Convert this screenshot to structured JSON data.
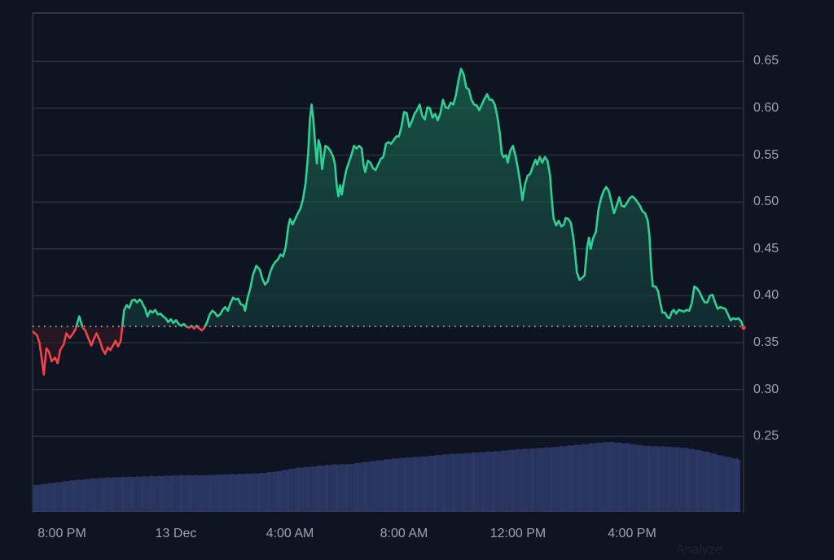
{
  "chart_data": {
    "type": "area",
    "title": "",
    "xlabel": "",
    "ylabel": "",
    "ylim": [
      0.2,
      0.7
    ],
    "grid": true,
    "legend": null,
    "baseline": 0.367,
    "x_ticks": [
      "8:00 PM",
      "13 Dec",
      "4:00 AM",
      "8:00 AM",
      "12:00 PM",
      "4:00 PM"
    ],
    "y_ticks": [
      "0.65",
      "0.60",
      "0.55",
      "0.50",
      "0.45",
      "0.40",
      "0.35",
      "0.30",
      "0.25"
    ],
    "colors": {
      "up": "#2ed192",
      "down": "#f0434a",
      "volume": "#2a3560",
      "grid": "#2a303c",
      "background": "#0e1421"
    },
    "series": [
      {
        "name": "price",
        "points": [
          [
            0,
            0.362
          ],
          [
            5,
            0.358
          ],
          [
            8,
            0.35
          ],
          [
            11,
            0.33
          ],
          [
            13,
            0.316
          ],
          [
            16,
            0.344
          ],
          [
            19,
            0.34
          ],
          [
            22,
            0.33
          ],
          [
            26,
            0.334
          ],
          [
            29,
            0.328
          ],
          [
            32,
            0.342
          ],
          [
            36,
            0.348
          ],
          [
            39,
            0.36
          ],
          [
            43,
            0.355
          ],
          [
            47,
            0.36
          ],
          [
            50,
            0.365
          ],
          [
            54,
            0.378
          ],
          [
            58,
            0.366
          ],
          [
            61,
            0.363
          ],
          [
            64,
            0.356
          ],
          [
            68,
            0.347
          ],
          [
            71,
            0.354
          ],
          [
            74,
            0.36
          ],
          [
            78,
            0.352
          ],
          [
            81,
            0.343
          ],
          [
            84,
            0.338
          ],
          [
            87,
            0.345
          ],
          [
            90,
            0.342
          ],
          [
            93,
            0.347
          ],
          [
            96,
            0.352
          ],
          [
            99,
            0.346
          ],
          [
            102,
            0.352
          ],
          [
            104,
            0.368
          ],
          [
            106,
            0.385
          ],
          [
            109,
            0.39
          ],
          [
            112,
            0.387
          ],
          [
            115,
            0.395
          ],
          [
            118,
            0.396
          ],
          [
            121,
            0.393
          ],
          [
            124,
            0.396
          ],
          [
            126,
            0.394
          ],
          [
            128,
            0.39
          ],
          [
            130,
            0.387
          ],
          [
            133,
            0.378
          ],
          [
            136,
            0.384
          ],
          [
            139,
            0.382
          ],
          [
            142,
            0.385
          ],
          [
            145,
            0.38
          ],
          [
            148,
            0.381
          ],
          [
            151,
            0.378
          ],
          [
            154,
            0.376
          ],
          [
            157,
            0.372
          ],
          [
            160,
            0.375
          ],
          [
            163,
            0.371
          ],
          [
            166,
            0.374
          ],
          [
            169,
            0.37
          ],
          [
            172,
            0.368
          ],
          [
            175,
            0.37
          ],
          [
            178,
            0.367
          ],
          [
            181,
            0.366
          ],
          [
            184,
            0.368
          ],
          [
            187,
            0.365
          ],
          [
            190,
            0.368
          ],
          [
            193,
            0.365
          ],
          [
            196,
            0.363
          ],
          [
            199,
            0.366
          ],
          [
            202,
            0.372
          ],
          [
            205,
            0.38
          ],
          [
            208,
            0.384
          ],
          [
            211,
            0.382
          ],
          [
            214,
            0.378
          ],
          [
            217,
            0.38
          ],
          [
            220,
            0.385
          ],
          [
            223,
            0.388
          ],
          [
            226,
            0.384
          ],
          [
            229,
            0.392
          ],
          [
            232,
            0.398
          ],
          [
            235,
            0.396
          ],
          [
            238,
            0.397
          ],
          [
            241,
            0.391
          ],
          [
            244,
            0.39
          ],
          [
            246,
            0.384
          ],
          [
            249,
            0.398
          ],
          [
            252,
            0.408
          ],
          [
            255,
            0.422
          ],
          [
            259,
            0.432
          ],
          [
            263,
            0.428
          ],
          [
            266,
            0.418
          ],
          [
            269,
            0.412
          ],
          [
            272,
            0.415
          ],
          [
            275,
            0.425
          ],
          [
            278,
            0.432
          ],
          [
            281,
            0.436
          ],
          [
            284,
            0.439
          ],
          [
            287,
            0.444
          ],
          [
            290,
            0.442
          ],
          [
            293,
            0.452
          ],
          [
            296,
            0.474
          ],
          [
            298,
            0.482
          ],
          [
            301,
            0.476
          ],
          [
            304,
            0.482
          ],
          [
            307,
            0.488
          ],
          [
            310,
            0.493
          ],
          [
            313,
            0.503
          ],
          [
            316,
            0.52
          ],
          [
            319,
            0.552
          ],
          [
            321,
            0.588
          ],
          [
            323,
            0.604
          ],
          [
            325,
            0.588
          ],
          [
            327,
            0.563
          ],
          [
            329,
            0.541
          ],
          [
            331,
            0.566
          ],
          [
            333,
            0.56
          ],
          [
            335,
            0.535
          ],
          [
            337,
            0.548
          ],
          [
            339,
            0.56
          ],
          [
            342,
            0.558
          ],
          [
            345,
            0.554
          ],
          [
            348,
            0.548
          ],
          [
            350,
            0.54
          ],
          [
            352,
            0.518
          ],
          [
            354,
            0.506
          ],
          [
            356,
            0.518
          ],
          [
            358,
            0.508
          ],
          [
            360,
            0.52
          ],
          [
            363,
            0.534
          ],
          [
            366,
            0.542
          ],
          [
            369,
            0.55
          ],
          [
            372,
            0.56
          ],
          [
            375,
            0.557
          ],
          [
            378,
            0.56
          ],
          [
            381,
            0.557
          ],
          [
            383,
            0.54
          ],
          [
            385,
            0.532
          ],
          [
            388,
            0.544
          ],
          [
            391,
            0.542
          ],
          [
            394,
            0.536
          ],
          [
            397,
            0.534
          ],
          [
            400,
            0.54
          ],
          [
            403,
            0.546
          ],
          [
            406,
            0.548
          ],
          [
            409,
            0.562
          ],
          [
            412,
            0.564
          ],
          [
            415,
            0.562
          ],
          [
            418,
            0.566
          ],
          [
            421,
            0.57
          ],
          [
            424,
            0.57
          ],
          [
            427,
            0.58
          ],
          [
            430,
            0.596
          ],
          [
            433,
            0.595
          ],
          [
            436,
            0.58
          ],
          [
            439,
            0.586
          ],
          [
            442,
            0.594
          ],
          [
            445,
            0.598
          ],
          [
            448,
            0.604
          ],
          [
            451,
            0.592
          ],
          [
            454,
            0.588
          ],
          [
            457,
            0.601
          ],
          [
            460,
            0.6
          ],
          [
            463,
            0.59
          ],
          [
            466,
            0.594
          ],
          [
            469,
            0.587
          ],
          [
            472,
            0.595
          ],
          [
            475,
            0.609
          ],
          [
            478,
            0.601
          ],
          [
            481,
            0.6
          ],
          [
            484,
            0.606
          ],
          [
            487,
            0.604
          ],
          [
            490,
            0.614
          ],
          [
            493,
            0.63
          ],
          [
            496,
            0.642
          ],
          [
            499,
            0.636
          ],
          [
            502,
            0.622
          ],
          [
            505,
            0.62
          ],
          [
            508,
            0.609
          ],
          [
            511,
            0.604
          ],
          [
            514,
            0.603
          ],
          [
            517,
            0.598
          ],
          [
            520,
            0.604
          ],
          [
            523,
            0.61
          ],
          [
            526,
            0.615
          ],
          [
            529,
            0.609
          ],
          [
            532,
            0.609
          ],
          [
            535,
            0.604
          ],
          [
            538,
            0.591
          ],
          [
            541,
            0.572
          ],
          [
            543,
            0.552
          ],
          [
            545,
            0.548
          ],
          [
            548,
            0.55
          ],
          [
            550,
            0.542
          ],
          [
            553,
            0.555
          ],
          [
            556,
            0.56
          ],
          [
            559,
            0.549
          ],
          [
            562,
            0.535
          ],
          [
            565,
            0.517
          ],
          [
            567,
            0.502
          ],
          [
            570,
            0.519
          ],
          [
            573,
            0.528
          ],
          [
            576,
            0.53
          ],
          [
            579,
            0.538
          ],
          [
            582,
            0.545
          ],
          [
            584,
            0.54
          ],
          [
            587,
            0.548
          ],
          [
            590,
            0.542
          ],
          [
            593,
            0.548
          ],
          [
            596,
            0.544
          ],
          [
            599,
            0.528
          ],
          [
            601,
            0.503
          ],
          [
            603,
            0.483
          ],
          [
            606,
            0.475
          ],
          [
            609,
            0.48
          ],
          [
            612,
            0.474
          ],
          [
            615,
            0.476
          ],
          [
            617,
            0.483
          ],
          [
            620,
            0.482
          ],
          [
            623,
            0.478
          ],
          [
            626,
            0.462
          ],
          [
            628,
            0.444
          ],
          [
            630,
            0.425
          ],
          [
            633,
            0.417
          ],
          [
            636,
            0.419
          ],
          [
            639,
            0.422
          ],
          [
            642,
            0.452
          ],
          [
            644,
            0.462
          ],
          [
            646,
            0.45
          ],
          [
            649,
            0.462
          ],
          [
            652,
            0.468
          ],
          [
            655,
            0.492
          ],
          [
            658,
            0.504
          ],
          [
            661,
            0.512
          ],
          [
            664,
            0.516
          ],
          [
            667,
            0.512
          ],
          [
            670,
            0.5
          ],
          [
            673,
            0.488
          ],
          [
            676,
            0.496
          ],
          [
            679,
            0.505
          ],
          [
            682,
            0.496
          ],
          [
            685,
            0.495
          ],
          [
            688,
            0.499
          ],
          [
            691,
            0.504
          ],
          [
            694,
            0.506
          ],
          [
            697,
            0.504
          ],
          [
            700,
            0.5
          ],
          [
            703,
            0.496
          ],
          [
            706,
            0.49
          ],
          [
            709,
            0.488
          ],
          [
            712,
            0.48
          ],
          [
            714,
            0.464
          ],
          [
            716,
            0.43
          ],
          [
            718,
            0.41
          ],
          [
            721,
            0.41
          ],
          [
            724,
            0.405
          ],
          [
            726,
            0.395
          ],
          [
            729,
            0.382
          ],
          [
            732,
            0.382
          ],
          [
            735,
            0.377
          ],
          [
            737,
            0.376
          ],
          [
            740,
            0.383
          ],
          [
            742,
            0.385
          ],
          [
            745,
            0.381
          ],
          [
            748,
            0.385
          ],
          [
            751,
            0.384
          ],
          [
            754,
            0.383
          ],
          [
            757,
            0.385
          ],
          [
            760,
            0.384
          ],
          [
            763,
            0.392
          ],
          [
            766,
            0.41
          ],
          [
            769,
            0.408
          ],
          [
            772,
            0.404
          ],
          [
            775,
            0.398
          ],
          [
            778,
            0.393
          ],
          [
            781,
            0.393
          ],
          [
            784,
            0.4
          ],
          [
            787,
            0.401
          ],
          [
            790,
            0.393
          ],
          [
            793,
            0.386
          ],
          [
            796,
            0.388
          ],
          [
            799,
            0.387
          ],
          [
            802,
            0.386
          ],
          [
            805,
            0.38
          ],
          [
            808,
            0.374
          ],
          [
            811,
            0.376
          ],
          [
            814,
            0.375
          ],
          [
            817,
            0.376
          ],
          [
            820,
            0.373
          ],
          [
            823,
            0.366
          ]
        ],
        "approx_range": {
          "min": 0.316,
          "max": 0.642,
          "start": 0.362,
          "end": 0.366
        }
      },
      {
        "name": "volume",
        "note": "relative bar heights (0-1) sampled left to right",
        "values": [
          0.26,
          0.3,
          0.34,
          0.37,
          0.39,
          0.4,
          0.41,
          0.42,
          0.43,
          0.43,
          0.44,
          0.45,
          0.46,
          0.49,
          0.55,
          0.58,
          0.61,
          0.62,
          0.66,
          0.7,
          0.73,
          0.75,
          0.78,
          0.8,
          0.82,
          0.84,
          0.87,
          0.89,
          0.91,
          0.94,
          0.97,
          1.0,
          0.97,
          0.93,
          0.92,
          0.9,
          0.85,
          0.77,
          0.7
        ]
      }
    ]
  },
  "watermark": {
    "label": "Analyze"
  }
}
